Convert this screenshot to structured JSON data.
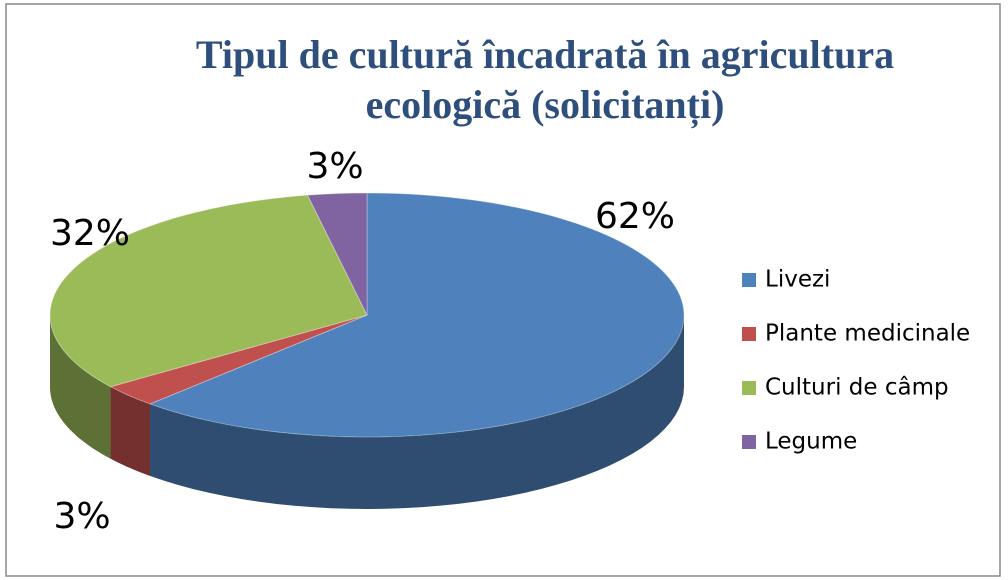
{
  "chart_data": {
    "type": "pie",
    "title": "Tipul de cultură încadrată în agricultura ecologică (solicitanți)",
    "categories": [
      "Livezi",
      "Plante medicinale",
      "Culturi de câmp",
      "Legume"
    ],
    "values": [
      62,
      3,
      32,
      3
    ],
    "value_labels": [
      "62%",
      "3%",
      "32%",
      "3%"
    ],
    "colors": [
      "#4f81bd",
      "#c0504d",
      "#9bbb59",
      "#8064a2"
    ],
    "legend": "right"
  }
}
